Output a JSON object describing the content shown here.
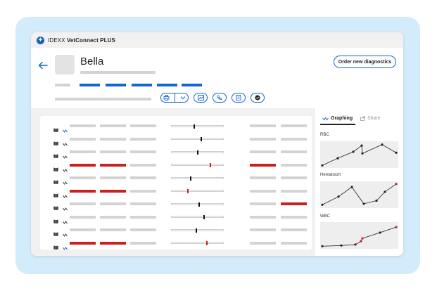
{
  "app": {
    "brand_prefix": "IDEXX",
    "brand_name": "VetConnect PLUS",
    "logo_glyph": "✦",
    "accent": "#1366d6",
    "alert_color": "#cc1f1f"
  },
  "patient": {
    "name": "Bella"
  },
  "header": {
    "order_button_label": "Order new diagnostics",
    "actions": [
      "printer-icon",
      "chevron-down-icon",
      "image-icon",
      "phone-icon",
      "document-icon",
      "check-circle-icon"
    ]
  },
  "results": {
    "rows": [
      {
        "graphed": true,
        "flag": false,
        "marker": 0.43,
        "marker_flag": false,
        "high": false
      },
      {
        "graphed": false,
        "flag": false,
        "marker": 0.56,
        "marker_flag": false,
        "high": false
      },
      {
        "graphed": false,
        "flag": false,
        "marker": 0.49,
        "marker_flag": false,
        "high": false
      },
      {
        "graphed": false,
        "flag": true,
        "marker": 0.73,
        "marker_flag": true,
        "high": true
      },
      {
        "graphed": false,
        "flag": false,
        "marker": 0.36,
        "marker_flag": false,
        "high": false
      },
      {
        "graphed": false,
        "flag": true,
        "marker": 0.3,
        "marker_flag": true,
        "high": false
      },
      {
        "graphed": false,
        "flag": false,
        "marker": 0.52,
        "marker_flag": false,
        "high": true
      },
      {
        "graphed": false,
        "flag": false,
        "marker": 0.61,
        "marker_flag": false,
        "high": false
      },
      {
        "graphed": false,
        "flag": false,
        "marker": 0.47,
        "marker_flag": false,
        "high": false
      },
      {
        "graphed": true,
        "flag": true,
        "marker": 0.67,
        "marker_flag": true,
        "high": false
      }
    ]
  },
  "side_panel": {
    "tabs": [
      {
        "label": "Graphing",
        "icon": "trend-icon",
        "active": true
      },
      {
        "label": "Share",
        "icon": "share-icon",
        "active": false
      }
    ],
    "graphs": [
      {
        "label": "RBC",
        "points": [
          0.05,
          0.35,
          0.62,
          0.88,
          0.55,
          0.92,
          0.58
        ],
        "highlight_last": false
      },
      {
        "label": "Hematocrit",
        "points": [
          0.08,
          0.42,
          0.82,
          0.12,
          0.25,
          0.62,
          0.95
        ],
        "highlight_last": true
      },
      {
        "label": "WBC",
        "points": [
          0.05,
          0.08,
          0.12,
          0.26,
          0.38,
          0.62,
          0.85
        ],
        "highlight_last": true
      }
    ]
  }
}
